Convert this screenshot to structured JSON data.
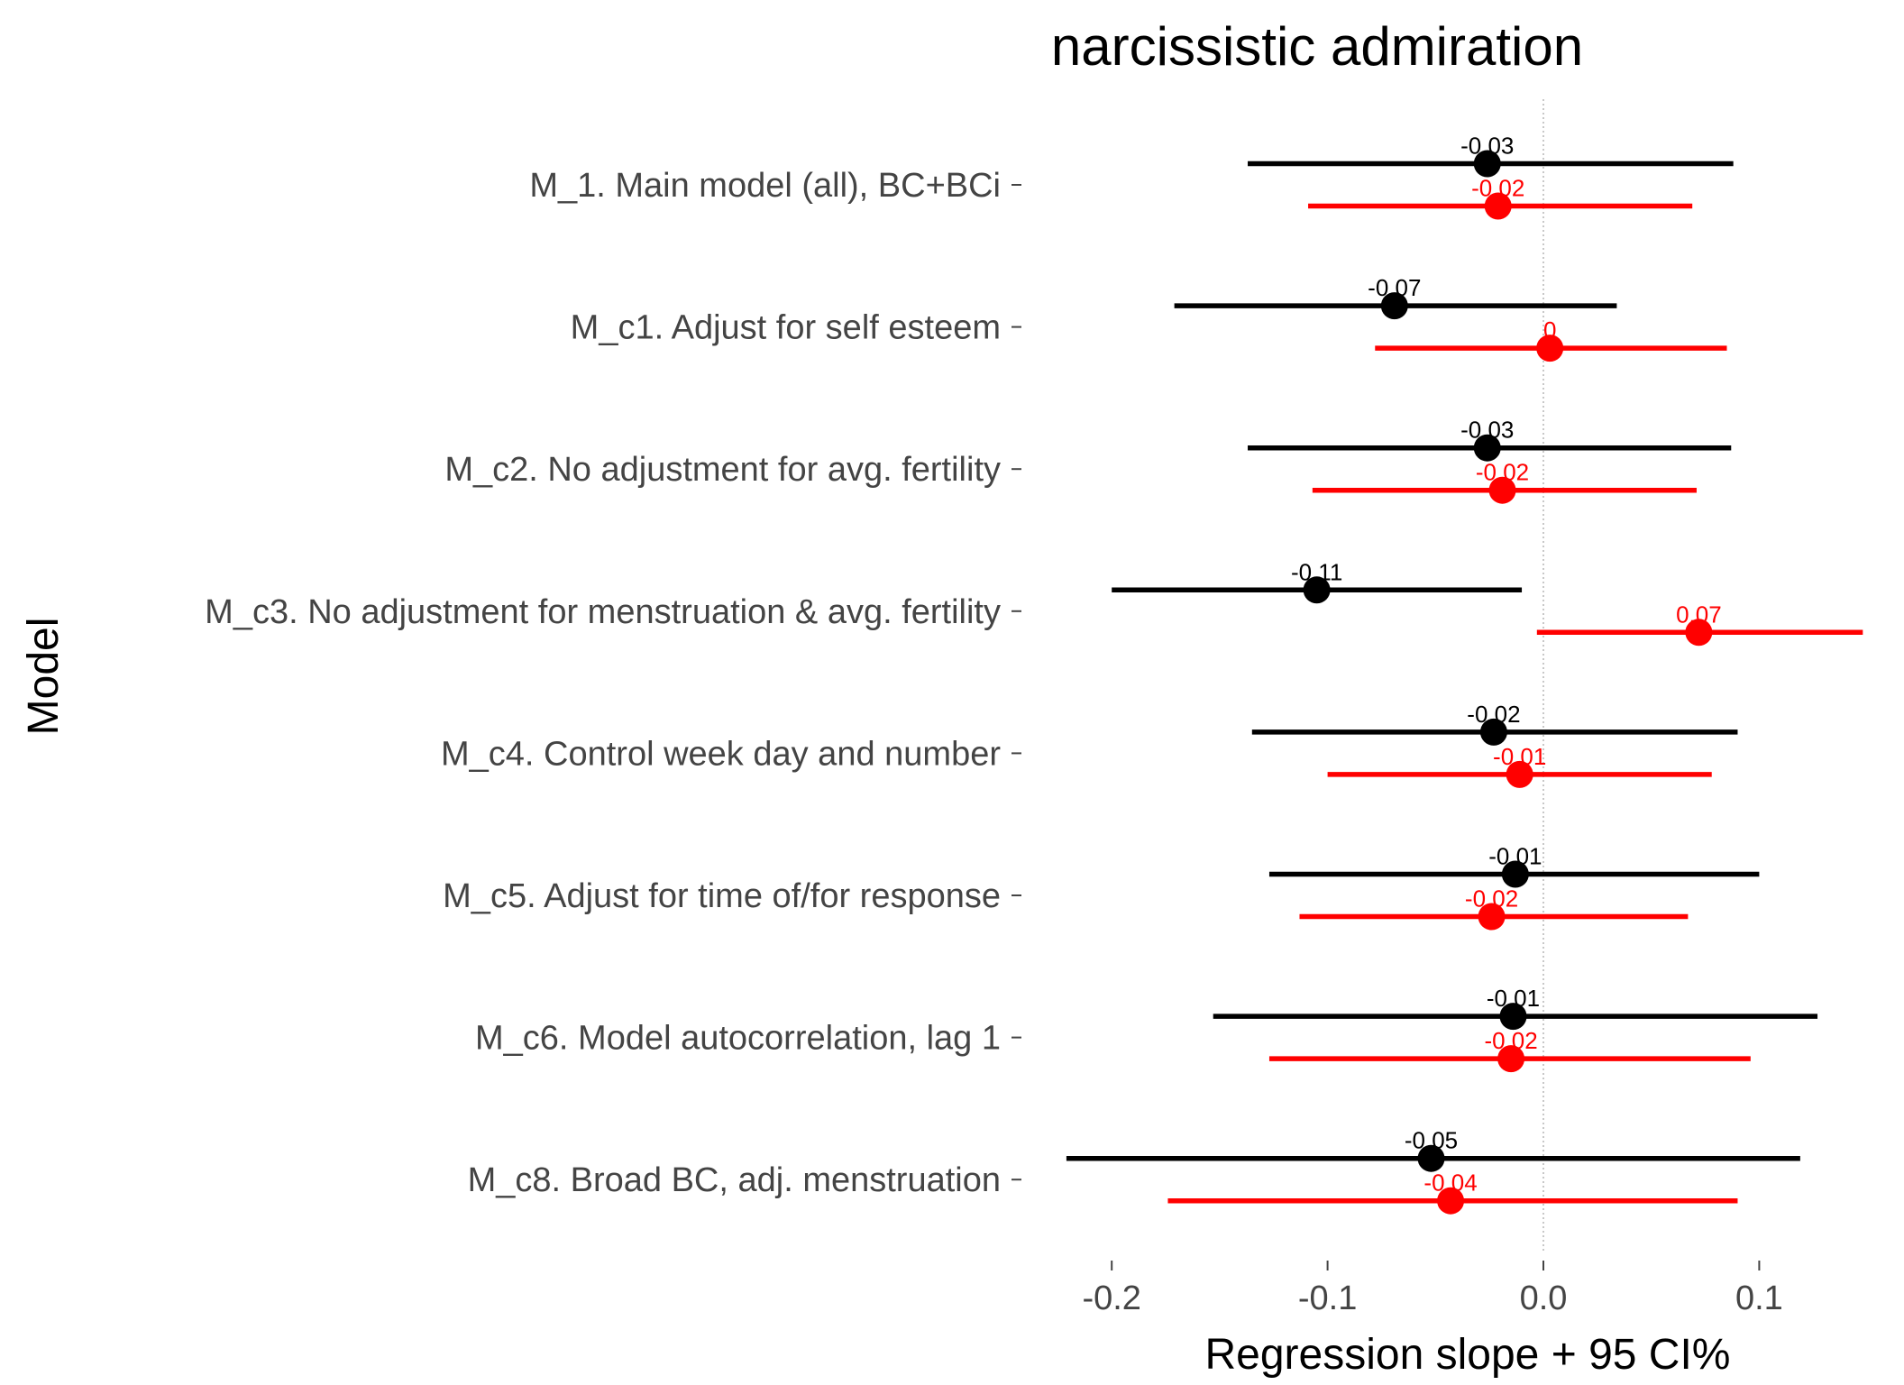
{
  "chart_data": {
    "type": "forest",
    "title": "narcissistic admiration",
    "xlabel": "Regression slope + 95 CI%",
    "ylabel": "Model",
    "xlim": [
      -0.23,
      0.16
    ],
    "xticks": [
      -0.2,
      -0.1,
      0.0,
      0.1
    ],
    "xtick_labels": [
      "-0.2",
      "-0.1",
      "0.0",
      "0.1"
    ],
    "reference_line": 0,
    "grid": false,
    "categories": [
      "M_1. Main model (all), BC+BCi",
      "M_c1. Adjust for self esteem",
      "M_c2. No adjustment for avg. fertility",
      "M_c3. No adjustment for menstruation & avg. fertility",
      "M_c4. Control week day and number",
      "M_c5. Adjust for time of/for response",
      "M_c6. Model autocorrelation, lag 1",
      "M_c8. Broad BC, adj. menstruation"
    ],
    "series": [
      {
        "color": "#000000",
        "estimates": [
          -0.026,
          -0.069,
          -0.026,
          -0.105,
          -0.023,
          -0.013,
          -0.014,
          -0.052
        ],
        "ci_low": [
          -0.137,
          -0.171,
          -0.137,
          -0.2,
          -0.135,
          -0.127,
          -0.153,
          -0.221
        ],
        "ci_high": [
          0.088,
          0.034,
          0.087,
          -0.01,
          0.09,
          0.1,
          0.127,
          0.119
        ],
        "labels": [
          "-0.03",
          "-0.07",
          "-0.03",
          "-0.11",
          "-0.02",
          "-0.01",
          "-0.01",
          "-0.05"
        ]
      },
      {
        "color": "#ff0000",
        "estimates": [
          -0.021,
          0.003,
          -0.019,
          0.072,
          -0.011,
          -0.024,
          -0.015,
          -0.043
        ],
        "ci_low": [
          -0.109,
          -0.078,
          -0.107,
          -0.003,
          -0.1,
          -0.113,
          -0.127,
          -0.174
        ],
        "ci_high": [
          0.069,
          0.085,
          0.071,
          0.148,
          0.078,
          0.067,
          0.096,
          0.09
        ],
        "labels": [
          "-0.02",
          "0",
          "-0.02",
          "0.07",
          "-0.01",
          "-0.02",
          "-0.02",
          "-0.04"
        ]
      }
    ]
  }
}
